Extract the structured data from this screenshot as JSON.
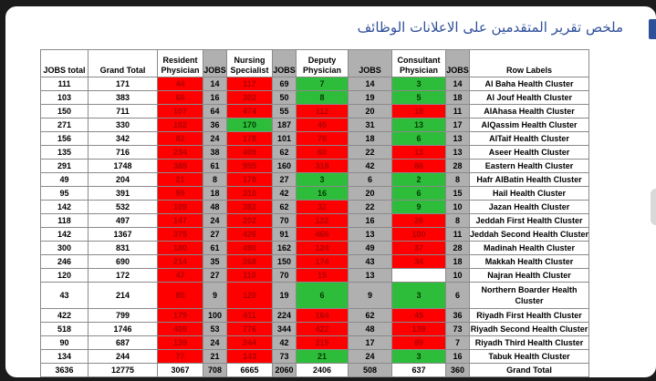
{
  "page": {
    "title": "ملخص تقرير المتقدمين على الاعلانات الوظائف"
  },
  "table": {
    "headers": [
      "JOBS total",
      "Grand Total",
      "Resident Physician",
      "JOBS",
      "Nursing Specialist",
      "JOBS",
      "Deputy Physician",
      "JOBS",
      "Consultant Physician",
      "JOBS",
      "Row Labels"
    ],
    "rows": [
      {
        "label": "Al Baha Health Cluster",
        "jobs_total": "111",
        "grand_total": "171",
        "resident": "44",
        "resident_jobs": "14",
        "nursing": "117",
        "nursing_jobs": "69",
        "deputy": "7",
        "deputy_jobs": "14",
        "consultant": "3",
        "consultant_jobs": "14",
        "colors": [
          "red",
          "red",
          "green",
          "green"
        ]
      },
      {
        "label": "Al Jouf Health Cluster",
        "jobs_total": "103",
        "grand_total": "383",
        "resident": "68",
        "resident_jobs": "16",
        "nursing": "302",
        "nursing_jobs": "50",
        "deputy": "8",
        "deputy_jobs": "19",
        "consultant": "5",
        "consultant_jobs": "18",
        "colors": [
          "red",
          "red",
          "green",
          "green"
        ]
      },
      {
        "label": "AlAhasa Health Cluster",
        "jobs_total": "150",
        "grand_total": "711",
        "resident": "107",
        "resident_jobs": "64",
        "nursing": "474",
        "nursing_jobs": "55",
        "deputy": "112",
        "deputy_jobs": "20",
        "consultant": "18",
        "consultant_jobs": "11",
        "colors": [
          "red",
          "red",
          "red",
          "red"
        ]
      },
      {
        "label": "AlQassim Health Cluster",
        "jobs_total": "271",
        "grand_total": "330",
        "resident": "102",
        "resident_jobs": "36",
        "nursing": "170",
        "nursing_jobs": "187",
        "deputy": "45",
        "deputy_jobs": "31",
        "consultant": "13",
        "consultant_jobs": "17",
        "colors": [
          "red",
          "green",
          "red",
          "green"
        ]
      },
      {
        "label": "AlTaif Health Cluster",
        "jobs_total": "156",
        "grand_total": "342",
        "resident": "82",
        "resident_jobs": "24",
        "nursing": "178",
        "nursing_jobs": "101",
        "deputy": "76",
        "deputy_jobs": "18",
        "consultant": "6",
        "consultant_jobs": "13",
        "colors": [
          "red",
          "red",
          "red",
          "green"
        ]
      },
      {
        "label": "Aseer Health Cluster",
        "jobs_total": "135",
        "grand_total": "716",
        "resident": "234",
        "resident_jobs": "38",
        "nursing": "409",
        "nursing_jobs": "62",
        "deputy": "60",
        "deputy_jobs": "22",
        "consultant": "13",
        "consultant_jobs": "13",
        "colors": [
          "red",
          "red",
          "red",
          "red"
        ]
      },
      {
        "label": "Eastern Health Cluster",
        "jobs_total": "291",
        "grand_total": "1748",
        "resident": "389",
        "resident_jobs": "61",
        "nursing": "955",
        "nursing_jobs": "160",
        "deputy": "318",
        "deputy_jobs": "42",
        "consultant": "86",
        "consultant_jobs": "28",
        "colors": [
          "red",
          "red",
          "red",
          "red"
        ]
      },
      {
        "label": "Hafr AlBatin Health Cluster",
        "jobs_total": "49",
        "grand_total": "204",
        "resident": "21",
        "resident_jobs": "8",
        "nursing": "178",
        "nursing_jobs": "27",
        "deputy": "3",
        "deputy_jobs": "6",
        "consultant": "2",
        "consultant_jobs": "8",
        "colors": [
          "red",
          "red",
          "green",
          "green"
        ]
      },
      {
        "label": "Hail Health Cluster",
        "jobs_total": "95",
        "grand_total": "391",
        "resident": "59",
        "resident_jobs": "18",
        "nursing": "310",
        "nursing_jobs": "42",
        "deputy": "16",
        "deputy_jobs": "20",
        "consultant": "6",
        "consultant_jobs": "15",
        "colors": [
          "red",
          "red",
          "green",
          "green"
        ]
      },
      {
        "label": "Jazan Health Cluster",
        "jobs_total": "142",
        "grand_total": "532",
        "resident": "109",
        "resident_jobs": "48",
        "nursing": "382",
        "nursing_jobs": "62",
        "deputy": "32",
        "deputy_jobs": "22",
        "consultant": "9",
        "consultant_jobs": "10",
        "colors": [
          "red",
          "red",
          "red",
          "green"
        ]
      },
      {
        "label": "Jeddah First Health Cluster",
        "jobs_total": "118",
        "grand_total": "497",
        "resident": "147",
        "resident_jobs": "24",
        "nursing": "202",
        "nursing_jobs": "70",
        "deputy": "122",
        "deputy_jobs": "16",
        "consultant": "26",
        "consultant_jobs": "8",
        "colors": [
          "red",
          "red",
          "red",
          "red"
        ]
      },
      {
        "label": "Jeddah Second Health Cluster",
        "jobs_total": "142",
        "grand_total": "1367",
        "resident": "375",
        "resident_jobs": "27",
        "nursing": "426",
        "nursing_jobs": "91",
        "deputy": "466",
        "deputy_jobs": "13",
        "consultant": "100",
        "consultant_jobs": "11",
        "colors": [
          "red",
          "red",
          "red",
          "red"
        ]
      },
      {
        "label": "Madinah Health Cluster",
        "jobs_total": "300",
        "grand_total": "831",
        "resident": "180",
        "resident_jobs": "61",
        "nursing": "490",
        "nursing_jobs": "162",
        "deputy": "124",
        "deputy_jobs": "49",
        "consultant": "37",
        "consultant_jobs": "28",
        "colors": [
          "red",
          "red",
          "red",
          "red"
        ]
      },
      {
        "label": "Makkah Health Cluster",
        "jobs_total": "246",
        "grand_total": "690",
        "resident": "214",
        "resident_jobs": "35",
        "nursing": "268",
        "nursing_jobs": "150",
        "deputy": "174",
        "deputy_jobs": "43",
        "consultant": "34",
        "consultant_jobs": "18",
        "colors": [
          "red",
          "red",
          "red",
          "red"
        ]
      },
      {
        "label": "Najran Health Cluster",
        "jobs_total": "120",
        "grand_total": "172",
        "resident": "47",
        "resident_jobs": "27",
        "nursing": "110",
        "nursing_jobs": "70",
        "deputy": "15",
        "deputy_jobs": "13",
        "consultant": "",
        "consultant_jobs": "10",
        "colors": [
          "red",
          "red",
          "red",
          "white"
        ]
      },
      {
        "label": "Northern Boarder Health Cluster",
        "jobs_total": "43",
        "grand_total": "214",
        "resident": "85",
        "resident_jobs": "9",
        "nursing": "120",
        "nursing_jobs": "19",
        "deputy": "6",
        "deputy_jobs": "9",
        "consultant": "3",
        "consultant_jobs": "6",
        "colors": [
          "red",
          "red",
          "green",
          "green"
        ],
        "tall": true
      },
      {
        "label": "Riyadh First Health Cluster",
        "jobs_total": "422",
        "grand_total": "799",
        "resident": "179",
        "resident_jobs": "100",
        "nursing": "411",
        "nursing_jobs": "224",
        "deputy": "164",
        "deputy_jobs": "62",
        "consultant": "45",
        "consultant_jobs": "36",
        "colors": [
          "red",
          "red",
          "red",
          "red"
        ]
      },
      {
        "label": "Riyadh Second  Health Cluster",
        "jobs_total": "518",
        "grand_total": "1746",
        "resident": "409",
        "resident_jobs": "53",
        "nursing": "776",
        "nursing_jobs": "344",
        "deputy": "422",
        "deputy_jobs": "48",
        "consultant": "139",
        "consultant_jobs": "73",
        "colors": [
          "red",
          "red",
          "red",
          "red"
        ]
      },
      {
        "label": "Riyadh Third Health Cluster",
        "jobs_total": "90",
        "grand_total": "687",
        "resident": "139",
        "resident_jobs": "24",
        "nursing": "244",
        "nursing_jobs": "42",
        "deputy": "215",
        "deputy_jobs": "17",
        "consultant": "89",
        "consultant_jobs": "7",
        "colors": [
          "red",
          "red",
          "red",
          "red"
        ]
      },
      {
        "label": "Tabuk Health Cluster",
        "jobs_total": "134",
        "grand_total": "244",
        "resident": "77",
        "resident_jobs": "21",
        "nursing": "143",
        "nursing_jobs": "73",
        "deputy": "21",
        "deputy_jobs": "24",
        "consultant": "3",
        "consultant_jobs": "16",
        "colors": [
          "red",
          "red",
          "green",
          "green"
        ]
      }
    ],
    "totals": {
      "label": "Grand Total",
      "jobs_total": "3636",
      "grand_total": "12775",
      "resident": "3067",
      "resident_jobs": "708",
      "nursing": "6665",
      "nursing_jobs": "2060",
      "deputy": "2406",
      "deputy_jobs": "508",
      "consultant": "637",
      "consultant_jobs": "360"
    }
  }
}
